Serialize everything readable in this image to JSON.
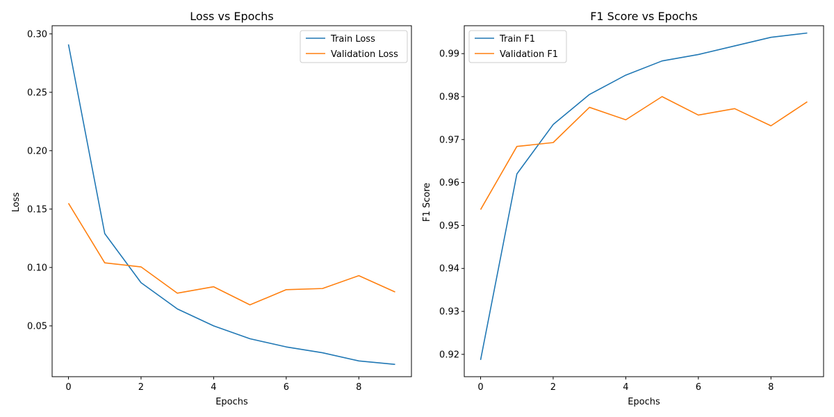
{
  "colors": {
    "train": "#1f77b4",
    "validation": "#ff7f0e"
  },
  "chart_data": [
    {
      "type": "line",
      "title": "Loss vs Epochs",
      "xlabel": "Epochs",
      "ylabel": "Loss",
      "x": [
        0,
        1,
        2,
        3,
        4,
        5,
        6,
        7,
        8,
        9
      ],
      "xlim": [
        -0.45,
        9.45
      ],
      "ylim": [
        0.0065,
        0.307
      ],
      "xticks": [
        0,
        2,
        4,
        6,
        8
      ],
      "xtick_labels": [
        "0",
        "2",
        "4",
        "6",
        "8"
      ],
      "yticks": [
        0.05,
        0.1,
        0.15,
        0.2,
        0.25,
        0.3
      ],
      "ytick_labels": [
        "0.05",
        "0.10",
        "0.15",
        "0.20",
        "0.25",
        "0.30"
      ],
      "grid": false,
      "legend_position": "top-right",
      "series": [
        {
          "name": "Train Loss",
          "color": "#1f77b4",
          "values": [
            0.291,
            0.129,
            0.087,
            0.0645,
            0.05,
            0.039,
            0.032,
            0.027,
            0.02,
            0.017
          ]
        },
        {
          "name": "Validation Loss",
          "color": "#ff7f0e",
          "values": [
            0.155,
            0.104,
            0.1005,
            0.078,
            0.0835,
            0.068,
            0.081,
            0.082,
            0.093,
            0.079
          ]
        }
      ]
    },
    {
      "type": "line",
      "title": "F1 Score vs Epochs",
      "xlabel": "Epochs",
      "ylabel": "F1 Score",
      "x": [
        0,
        1,
        2,
        3,
        4,
        5,
        6,
        7,
        8,
        9
      ],
      "xlim": [
        -0.45,
        9.45
      ],
      "ylim": [
        0.9148,
        0.9965
      ],
      "xticks": [
        0,
        2,
        4,
        6,
        8
      ],
      "xtick_labels": [
        "0",
        "2",
        "4",
        "6",
        "8"
      ],
      "yticks": [
        0.92,
        0.93,
        0.94,
        0.95,
        0.96,
        0.97,
        0.98,
        0.99
      ],
      "ytick_labels": [
        "0.92",
        "0.93",
        "0.94",
        "0.95",
        "0.96",
        "0.97",
        "0.98",
        "0.99"
      ],
      "grid": false,
      "legend_position": "top-left",
      "series": [
        {
          "name": "Train F1",
          "color": "#1f77b4",
          "values": [
            0.9187,
            0.962,
            0.9735,
            0.9805,
            0.985,
            0.9883,
            0.9898,
            0.9918,
            0.9938,
            0.9948
          ]
        },
        {
          "name": "Validation F1",
          "color": "#ff7f0e",
          "values": [
            0.9537,
            0.9684,
            0.9693,
            0.9775,
            0.9746,
            0.98,
            0.9757,
            0.9772,
            0.9732,
            0.9788
          ]
        }
      ]
    }
  ]
}
